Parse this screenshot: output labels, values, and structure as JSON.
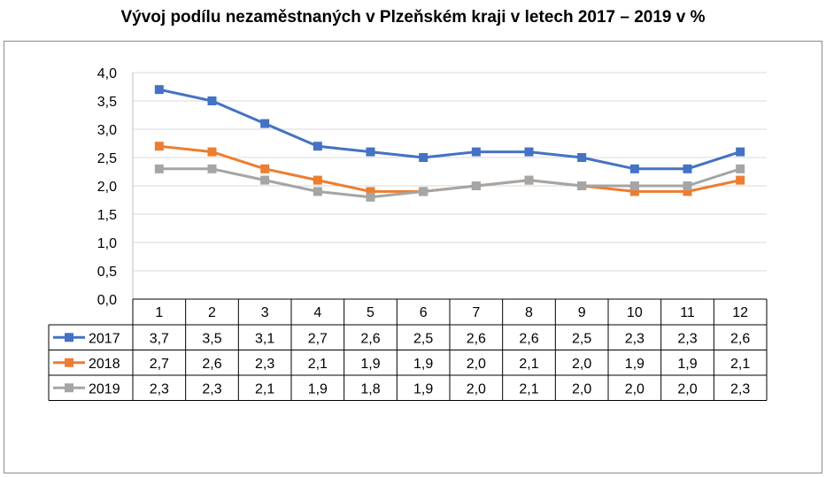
{
  "chart_data": {
    "type": "line",
    "title": "Vývoj podílu nezaměstnaných v Plzeňském kraji v letech 2017 – 2019 v %",
    "categories": [
      "1",
      "2",
      "3",
      "4",
      "5",
      "6",
      "7",
      "8",
      "9",
      "10",
      "11",
      "12"
    ],
    "series": [
      {
        "name": "2017",
        "color": "#4472c4",
        "values": [
          3.7,
          3.5,
          3.1,
          2.7,
          2.6,
          2.5,
          2.6,
          2.6,
          2.5,
          2.3,
          2.3,
          2.6
        ],
        "labels": [
          "3,7",
          "3,5",
          "3,1",
          "2,7",
          "2,6",
          "2,5",
          "2,6",
          "2,6",
          "2,5",
          "2,3",
          "2,3",
          "2,6"
        ]
      },
      {
        "name": "2018",
        "color": "#ed7d31",
        "values": [
          2.7,
          2.6,
          2.3,
          2.1,
          1.9,
          1.9,
          2.0,
          2.1,
          2.0,
          1.9,
          1.9,
          2.1
        ],
        "labels": [
          "2,7",
          "2,6",
          "2,3",
          "2,1",
          "1,9",
          "1,9",
          "2,0",
          "2,1",
          "2,0",
          "1,9",
          "1,9",
          "2,1"
        ]
      },
      {
        "name": "2019",
        "color": "#a5a5a5",
        "values": [
          2.3,
          2.3,
          2.1,
          1.9,
          1.8,
          1.9,
          2.0,
          2.1,
          2.0,
          2.0,
          2.0,
          2.3
        ],
        "labels": [
          "2,3",
          "2,3",
          "2,1",
          "1,9",
          "1,8",
          "1,9",
          "2,0",
          "2,1",
          "2,0",
          "2,0",
          "2,0",
          "2,3"
        ]
      }
    ],
    "ylim": [
      0,
      4
    ],
    "yticks": [
      "0,0",
      "0,5",
      "1,0",
      "1,5",
      "2,0",
      "2,5",
      "3,0",
      "3,5",
      "4,0"
    ],
    "grid": true,
    "legend": "data-table"
  }
}
